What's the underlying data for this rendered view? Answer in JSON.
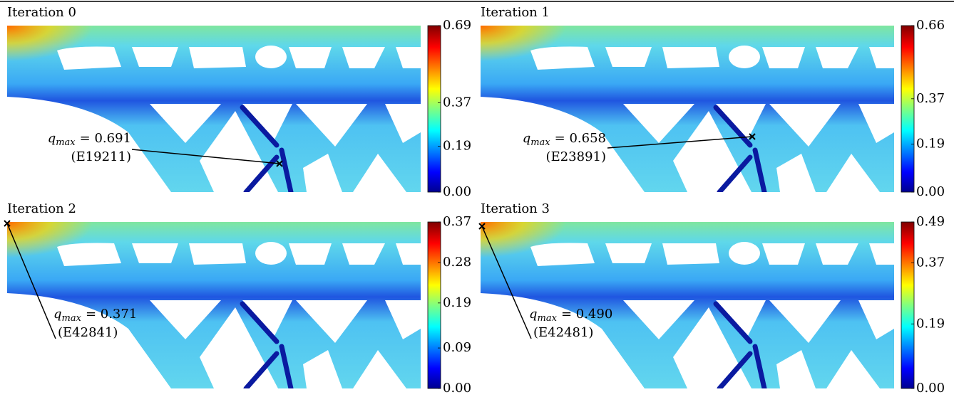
{
  "panels": [
    {
      "title": "Iteration 0",
      "colorbar_ticks": [
        "0.69",
        "0.37",
        "0.19",
        "0.00"
      ],
      "annotation": {
        "symbol": "q",
        "subscript": "max",
        "value": "= 0.691",
        "element": "(E19211)"
      }
    },
    {
      "title": "Iteration 1",
      "colorbar_ticks": [
        "0.66",
        "0.37",
        "0.19",
        "0.00"
      ],
      "annotation": {
        "symbol": "q",
        "subscript": "max",
        "value": "= 0.658",
        "element": "(E23891)"
      }
    },
    {
      "title": "Iteration 2",
      "colorbar_ticks": [
        "0.37",
        "0.28",
        "0.19",
        "0.09",
        "0.00"
      ],
      "annotation": {
        "symbol": "q",
        "subscript": "max",
        "value": "= 0.371",
        "element": "(E42841)"
      }
    },
    {
      "title": "Iteration 3",
      "colorbar_ticks": [
        "0.49",
        "0.37",
        "0.19",
        "0.00"
      ],
      "annotation": {
        "symbol": "q",
        "subscript": "max",
        "value": "= 0.490",
        "element": "(E42481)"
      }
    }
  ]
}
